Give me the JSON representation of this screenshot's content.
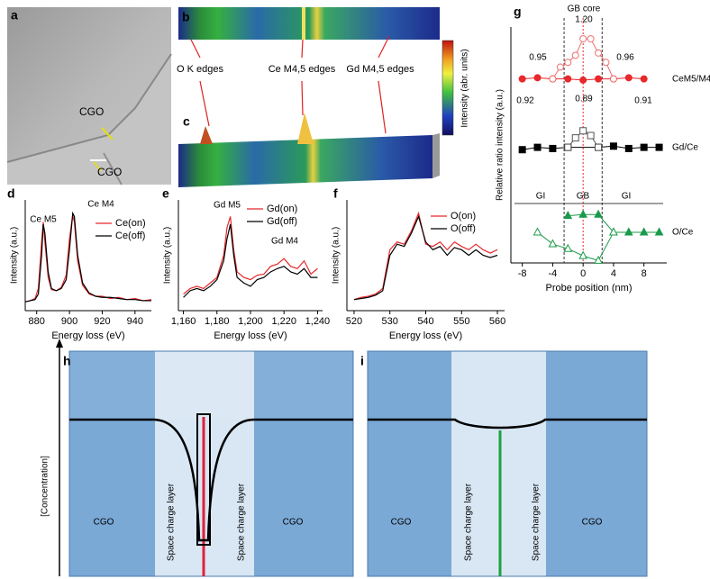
{
  "figure": {
    "panel_labels": [
      "a",
      "b",
      "c",
      "d",
      "e",
      "f",
      "g",
      "h",
      "i"
    ],
    "image_labels": [
      "CGO",
      "CGO"
    ],
    "edge_labels": [
      "O K edges",
      "Ce M4,5 edges",
      "Gd M4,5 edges"
    ],
    "colorbar_label": "Intensity (abr. units)"
  },
  "chart_data": [
    {
      "type": "line",
      "xlabel": "Energy loss (eV)",
      "ylabel": "Intensity (a.u.)",
      "x": [
        873,
        876,
        879,
        881,
        883,
        884,
        885,
        887,
        889,
        892,
        895,
        898,
        900,
        902,
        903,
        905,
        908,
        912,
        916,
        920,
        925,
        930,
        935,
        940,
        945,
        950
      ],
      "series": [
        {
          "name": "Ce(on)",
          "color": "#e8282b",
          "values": [
            0.08,
            0.09,
            0.11,
            0.2,
            0.62,
            0.8,
            0.62,
            0.3,
            0.19,
            0.18,
            0.21,
            0.32,
            0.65,
            0.86,
            0.8,
            0.45,
            0.23,
            0.15,
            0.13,
            0.13,
            0.11,
            0.12,
            0.1,
            0.11,
            0.09,
            0.1
          ]
        },
        {
          "name": "Ce(off)",
          "color": "#000000",
          "values": [
            0.08,
            0.09,
            0.1,
            0.15,
            0.5,
            0.78,
            0.7,
            0.35,
            0.2,
            0.18,
            0.2,
            0.28,
            0.55,
            0.88,
            0.85,
            0.5,
            0.25,
            0.16,
            0.13,
            0.12,
            0.12,
            0.11,
            0.1,
            0.1,
            0.09,
            0.09
          ]
        }
      ],
      "xlim": [
        873,
        950
      ],
      "ylim": [
        0,
        1
      ],
      "xticks": [
        880,
        900,
        920,
        940
      ],
      "annotations": [
        "Ce M5",
        "Ce M4"
      ]
    },
    {
      "type": "line",
      "xlabel": "Energy loss (eV)",
      "ylabel": "Intensity (a.u.)",
      "x": [
        1160,
        1164,
        1168,
        1172,
        1176,
        1180,
        1184,
        1186,
        1188,
        1190,
        1192,
        1196,
        1200,
        1204,
        1208,
        1212,
        1216,
        1220,
        1224,
        1228,
        1232,
        1236,
        1240
      ],
      "series": [
        {
          "name": "Gd(on)",
          "color": "#e8282b",
          "values": [
            0.15,
            0.2,
            0.22,
            0.2,
            0.25,
            0.3,
            0.5,
            0.75,
            0.85,
            0.55,
            0.35,
            0.3,
            0.28,
            0.32,
            0.33,
            0.4,
            0.42,
            0.47,
            0.4,
            0.38,
            0.45,
            0.33,
            0.38
          ]
        },
        {
          "name": "Gd(off)",
          "color": "#000000",
          "values": [
            0.12,
            0.18,
            0.2,
            0.18,
            0.22,
            0.28,
            0.45,
            0.65,
            0.78,
            0.5,
            0.3,
            0.25,
            0.22,
            0.28,
            0.3,
            0.35,
            0.38,
            0.4,
            0.35,
            0.33,
            0.38,
            0.3,
            0.3
          ]
        }
      ],
      "xlim": [
        1157,
        1243
      ],
      "ylim": [
        0,
        1
      ],
      "xticks": [
        {
          "value": 1160,
          "label": "1,160"
        },
        {
          "value": 1180,
          "label": "1,180"
        },
        {
          "value": 1200,
          "label": "1,200"
        },
        {
          "value": 1220,
          "label": "1,220"
        },
        {
          "value": 1240,
          "label": "1,240"
        }
      ],
      "annotations": [
        "Gd M5",
        "Gd M4"
      ]
    },
    {
      "type": "line",
      "xlabel": "Energy loss (eV)",
      "ylabel": "Intensity (a.u.)",
      "x": [
        520,
        522,
        524,
        526,
        528,
        530,
        532,
        534,
        536,
        538,
        540,
        542,
        544,
        546,
        548,
        550,
        552,
        554,
        556,
        558,
        560
      ],
      "series": [
        {
          "name": "O(on)",
          "color": "#e8282b",
          "values": [
            0.1,
            0.12,
            0.13,
            0.15,
            0.2,
            0.55,
            0.62,
            0.6,
            0.72,
            0.88,
            0.6,
            0.58,
            0.62,
            0.55,
            0.62,
            0.58,
            0.55,
            0.6,
            0.55,
            0.52,
            0.55
          ]
        },
        {
          "name": "O(off)",
          "color": "#000000",
          "values": [
            0.1,
            0.11,
            0.12,
            0.14,
            0.18,
            0.5,
            0.6,
            0.58,
            0.7,
            0.85,
            0.62,
            0.55,
            0.58,
            0.5,
            0.57,
            0.55,
            0.5,
            0.55,
            0.5,
            0.48,
            0.5
          ]
        }
      ],
      "xlim": [
        518,
        562
      ],
      "ylim": [
        0,
        1
      ],
      "xticks": [
        520,
        530,
        540,
        550,
        560
      ],
      "annotations": []
    },
    {
      "type": "line",
      "xlabel": "Probe position (nm)",
      "ylabel": "Relative ratio intensity (a.u.)",
      "series": [
        {
          "name": "CeM5/M4",
          "color": "#e8282b",
          "marker": "circle",
          "filled": true,
          "x": [
            -8,
            -6,
            -4,
            -2,
            0,
            2,
            4,
            6,
            8
          ],
          "values": [
            7.8,
            7.85,
            7.8,
            7.8,
            7.75,
            7.8,
            7.8,
            7.85,
            7.8
          ]
        },
        {
          "color": "#ee7070",
          "marker": "circle",
          "filled": false,
          "x": [
            -4,
            -3,
            -2,
            -1,
            0,
            1,
            2,
            3,
            4
          ],
          "values": [
            7.8,
            8.3,
            8.5,
            8.8,
            9.5,
            9.5,
            8.9,
            8.5,
            7.8
          ]
        },
        {
          "name": "Gd/Ce",
          "color": "#000000",
          "marker": "square",
          "filled": true,
          "x": [
            -8,
            -6,
            -4,
            -2,
            2,
            4,
            6,
            8,
            10
          ],
          "values": [
            4.8,
            4.9,
            4.85,
            4.9,
            4.9,
            4.95,
            4.85,
            4.9,
            4.9
          ]
        },
        {
          "color": "#555555",
          "marker": "square",
          "filled": false,
          "x": [
            -2,
            -1,
            0,
            1,
            2
          ],
          "values": [
            4.9,
            5.3,
            5.6,
            5.4,
            4.9
          ]
        },
        {
          "name": "O/Ce",
          "color": "#1a9a4a",
          "marker": "triangle",
          "filled": true,
          "x": [
            -2,
            0,
            2,
            4,
            6,
            8,
            10
          ],
          "values": [
            2.0,
            2.05,
            2.05,
            1.3,
            1.3,
            1.3,
            1.3
          ]
        },
        {
          "color": "#1a9a4a",
          "marker": "triangle",
          "filled": false,
          "x": [
            -6,
            -4,
            -2,
            0,
            2,
            4
          ],
          "values": [
            1.3,
            0.8,
            0.6,
            0.3,
            0.1,
            1.3
          ]
        }
      ],
      "xlim": [
        -9.5,
        11
      ],
      "ylim": [
        0,
        10
      ],
      "xticks": [
        -8,
        -4,
        0,
        4,
        8
      ],
      "boundaries": [
        -2.5,
        2.5
      ],
      "core": 0,
      "annotations": [
        "GB core",
        "GI",
        "GB",
        "GI",
        "0.95",
        "1.20",
        "0.96",
        "0.92",
        "0.89",
        "0.91"
      ]
    }
  ],
  "diagrams": {
    "y_label": "[Concentration]",
    "h": {
      "regions": [
        "CGO",
        "Space charge layer",
        "Space charge layer",
        "CGO"
      ]
    },
    "i": {
      "regions": [
        "CGO",
        "Space charge layer",
        "Space charge layer",
        "CGO"
      ]
    }
  }
}
